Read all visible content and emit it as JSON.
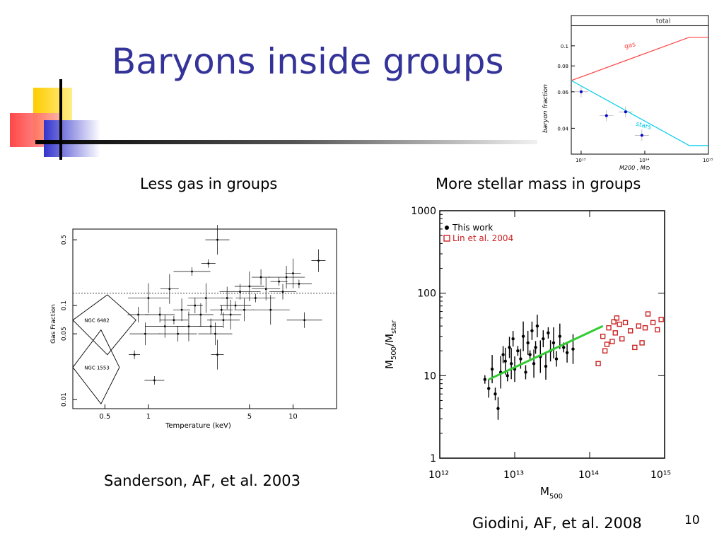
{
  "slide": {
    "title": "Baryons inside groups",
    "caption_left": "Less gas in groups",
    "caption_right": "More stellar mass in groups",
    "ref_left": "Sanderson, AF, et al. 2003",
    "ref_right": "Giodini, AF, et al. 2008",
    "page_number": "10"
  },
  "colors": {
    "title": "#333399",
    "deco_yellow": "#ffcc00",
    "deco_red": "#ff3333",
    "deco_blue": "#3333cc",
    "total_line": "#000000",
    "gas_line": "#ff4444",
    "stars_line": "#00ccee",
    "lin_points": "#cc2222",
    "fit_line": "#33cc33"
  },
  "chart_data": [
    {
      "type": "line",
      "ylabel": "baryon fraction",
      "xlabel": "M200 , M⊙",
      "x_scale": "log",
      "y_scale": "log",
      "xlim": [
        7000000000000,
        1000000000000000
      ],
      "ylim": [
        0.03,
        0.14
      ],
      "x_ticks": [
        "10¹³",
        "10¹⁴",
        "10¹⁵"
      ],
      "y_ticks": [
        "0.1",
        "0.08",
        "0.06",
        "0.04"
      ],
      "series": [
        {
          "name": "total",
          "x": [
            7000000000000,
            1000000000000000
          ],
          "y": [
            0.125,
            0.125
          ]
        },
        {
          "name": "gas",
          "x": [
            7000000000000,
            500000000000000,
            1000000000000000
          ],
          "y": [
            0.068,
            0.11,
            0.11
          ]
        },
        {
          "name": "stars",
          "x": [
            7000000000000,
            500000000000000,
            1000000000000000
          ],
          "y": [
            0.068,
            0.033,
            0.033
          ]
        }
      ],
      "points": [
        {
          "x": 10000000000000,
          "y": 0.06
        },
        {
          "x": 25000000000000,
          "y": 0.046
        },
        {
          "x": 50000000000000,
          "y": 0.048
        },
        {
          "x": 90000000000000,
          "y": 0.037
        }
      ]
    },
    {
      "type": "scatter",
      "xlabel": "Temperature   (keV)",
      "ylabel": "Gas Fraction",
      "x_scale": "log",
      "y_scale": "log",
      "xlim": [
        0.3,
        20
      ],
      "ylim": [
        0.008,
        0.65
      ],
      "x_ticks": [
        "0.5",
        "1",
        "5",
        "10"
      ],
      "y_ticks": [
        "0.01",
        "0.05",
        "0.1",
        "0.5"
      ],
      "annotations": [
        "NGC 6482",
        "NGC 1553"
      ],
      "reference_y": 0.135,
      "points": [
        {
          "x": 0.8,
          "y": 0.03
        },
        {
          "x": 0.85,
          "y": 0.08
        },
        {
          "x": 0.95,
          "y": 0.05
        },
        {
          "x": 1.0,
          "y": 0.12
        },
        {
          "x": 1.1,
          "y": 0.016
        },
        {
          "x": 1.2,
          "y": 0.08
        },
        {
          "x": 1.3,
          "y": 0.06
        },
        {
          "x": 1.4,
          "y": 0.15
        },
        {
          "x": 1.5,
          "y": 0.07
        },
        {
          "x": 1.6,
          "y": 0.05
        },
        {
          "x": 1.7,
          "y": 0.09
        },
        {
          "x": 1.9,
          "y": 0.06
        },
        {
          "x": 2.0,
          "y": 0.23
        },
        {
          "x": 2.1,
          "y": 0.1
        },
        {
          "x": 2.3,
          "y": 0.08
        },
        {
          "x": 2.5,
          "y": 0.12
        },
        {
          "x": 2.6,
          "y": 0.28
        },
        {
          "x": 2.7,
          "y": 0.06
        },
        {
          "x": 2.9,
          "y": 0.05
        },
        {
          "x": 3.0,
          "y": 0.03
        },
        {
          "x": 3.2,
          "y": 0.09
        },
        {
          "x": 3.3,
          "y": 0.07
        },
        {
          "x": 3.5,
          "y": 0.12
        },
        {
          "x": 3.7,
          "y": 0.08
        },
        {
          "x": 4.0,
          "y": 0.1
        },
        {
          "x": 4.3,
          "y": 0.14
        },
        {
          "x": 4.6,
          "y": 0.09
        },
        {
          "x": 5.0,
          "y": 0.16
        },
        {
          "x": 5.5,
          "y": 0.12
        },
        {
          "x": 6.0,
          "y": 0.2
        },
        {
          "x": 6.5,
          "y": 0.15
        },
        {
          "x": 7.0,
          "y": 0.09
        },
        {
          "x": 8.0,
          "y": 0.18
        },
        {
          "x": 8.5,
          "y": 0.14
        },
        {
          "x": 9.0,
          "y": 0.2
        },
        {
          "x": 10.0,
          "y": 0.22
        },
        {
          "x": 11.0,
          "y": 0.17
        },
        {
          "x": 12.0,
          "y": 0.07
        },
        {
          "x": 15.0,
          "y": 0.3
        },
        {
          "x": 3.0,
          "y": 0.5
        }
      ]
    },
    {
      "type": "scatter",
      "xlabel": "M500",
      "ylabel": "M500/Mstar",
      "x_scale": "log",
      "y_scale": "log",
      "xlim": [
        1000000000000,
        1000000000000000
      ],
      "ylim": [
        1,
        1000
      ],
      "x_ticks": [
        "10¹²",
        "10¹³",
        "10¹⁴",
        "10¹⁵"
      ],
      "y_ticks": [
        "1",
        "10",
        "100",
        "1000"
      ],
      "series": [
        {
          "name": "This work",
          "points": [
            {
              "x": 4000000000000,
              "y": 9
            },
            {
              "x": 4500000000000,
              "y": 7
            },
            {
              "x": 5000000000000,
              "y": 12
            },
            {
              "x": 5500000000000,
              "y": 6
            },
            {
              "x": 6000000000000,
              "y": 4
            },
            {
              "x": 6500000000000,
              "y": 11
            },
            {
              "x": 7000000000000,
              "y": 18
            },
            {
              "x": 7500000000000,
              "y": 15
            },
            {
              "x": 8000000000000,
              "y": 10
            },
            {
              "x": 8500000000000,
              "y": 22
            },
            {
              "x": 9000000000000,
              "y": 14
            },
            {
              "x": 9500000000000,
              "y": 28
            },
            {
              "x": 10000000000000,
              "y": 12
            },
            {
              "x": 11000000000000,
              "y": 20
            },
            {
              "x": 12000000000000,
              "y": 16
            },
            {
              "x": 13000000000000,
              "y": 30
            },
            {
              "x": 14000000000000,
              "y": 11
            },
            {
              "x": 15000000000000,
              "y": 25
            },
            {
              "x": 16000000000000,
              "y": 18
            },
            {
              "x": 17000000000000,
              "y": 35
            },
            {
              "x": 18000000000000,
              "y": 14
            },
            {
              "x": 19000000000000,
              "y": 22
            },
            {
              "x": 20000000000000,
              "y": 40
            },
            {
              "x": 22000000000000,
              "y": 17
            },
            {
              "x": 24000000000000,
              "y": 28
            },
            {
              "x": 26000000000000,
              "y": 13
            },
            {
              "x": 28000000000000,
              "y": 33
            },
            {
              "x": 30000000000000,
              "y": 20
            },
            {
              "x": 33000000000000,
              "y": 25
            },
            {
              "x": 36000000000000,
              "y": 16
            },
            {
              "x": 40000000000000,
              "y": 30
            },
            {
              "x": 45000000000000,
              "y": 22
            },
            {
              "x": 50000000000000,
              "y": 19
            },
            {
              "x": 60000000000000,
              "y": 21
            }
          ]
        },
        {
          "name": "Lin et al. 2004",
          "points": [
            {
              "x": 130000000000000,
              "y": 14
            },
            {
              "x": 150000000000000,
              "y": 30
            },
            {
              "x": 160000000000000,
              "y": 20
            },
            {
              "x": 170000000000000,
              "y": 24
            },
            {
              "x": 180000000000000,
              "y": 38
            },
            {
              "x": 200000000000000,
              "y": 26
            },
            {
              "x": 210000000000000,
              "y": 45
            },
            {
              "x": 220000000000000,
              "y": 33
            },
            {
              "x": 230000000000000,
              "y": 50
            },
            {
              "x": 250000000000000,
              "y": 42
            },
            {
              "x": 270000000000000,
              "y": 28
            },
            {
              "x": 300000000000000,
              "y": 44
            },
            {
              "x": 350000000000000,
              "y": 35
            },
            {
              "x": 400000000000000,
              "y": 22
            },
            {
              "x": 450000000000000,
              "y": 40
            },
            {
              "x": 500000000000000,
              "y": 25
            },
            {
              "x": 550000000000000,
              "y": 38
            },
            {
              "x": 600000000000000,
              "y": 56
            },
            {
              "x": 700000000000000,
              "y": 44
            },
            {
              "x": 800000000000000,
              "y": 36
            },
            {
              "x": 900000000000000,
              "y": 48
            }
          ]
        }
      ],
      "fit": {
        "x": [
          4500000000000,
          150000000000000
        ],
        "y": [
          9,
          40
        ]
      }
    }
  ]
}
